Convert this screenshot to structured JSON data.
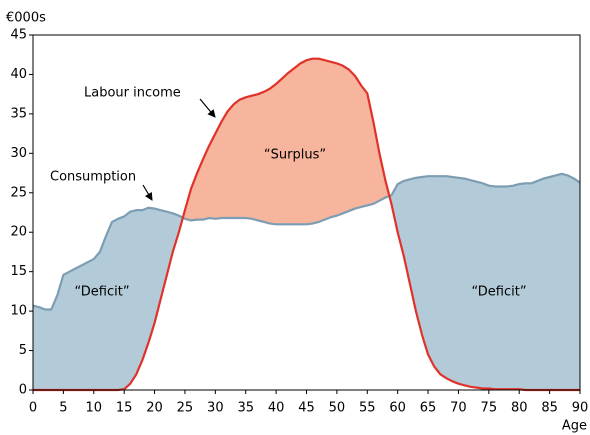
{
  "chart_data": {
    "type": "line",
    "y_unit_label": "€000s",
    "x_label": "Age",
    "x": [
      0,
      1,
      2,
      3,
      4,
      5,
      6,
      7,
      8,
      9,
      10,
      11,
      12,
      13,
      14,
      15,
      16,
      17,
      18,
      19,
      20,
      21,
      22,
      23,
      24,
      25,
      26,
      27,
      28,
      29,
      30,
      31,
      32,
      33,
      34,
      35,
      36,
      37,
      38,
      39,
      40,
      41,
      42,
      43,
      44,
      45,
      46,
      47,
      48,
      49,
      50,
      51,
      52,
      53,
      54,
      55,
      56,
      57,
      58,
      59,
      60,
      61,
      62,
      63,
      64,
      65,
      66,
      67,
      68,
      69,
      70,
      71,
      72,
      73,
      74,
      75,
      76,
      77,
      78,
      79,
      80,
      81,
      82,
      83,
      84,
      85,
      86,
      87,
      88,
      89,
      90
    ],
    "series": [
      {
        "name": "Consumption",
        "color": "#7d9db3",
        "values": [
          10.7,
          10.5,
          10.2,
          10.2,
          12,
          14.6,
          15,
          15.4,
          15.8,
          16.2,
          16.6,
          17.5,
          19.5,
          21.3,
          21.7,
          22,
          22.6,
          22.8,
          22.8,
          23.1,
          23,
          22.8,
          22.6,
          22.4,
          22.1,
          21.7,
          21.5,
          21.6,
          21.6,
          21.8,
          21.7,
          21.8,
          21.8,
          21.8,
          21.8,
          21.8,
          21.7,
          21.5,
          21.3,
          21.1,
          21,
          21,
          21,
          21,
          21,
          21,
          21.1,
          21.3,
          21.6,
          21.9,
          22.1,
          22.4,
          22.7,
          23,
          23.2,
          23.4,
          23.6,
          24,
          24.4,
          24.7,
          26.1,
          26.5,
          26.7,
          26.9,
          27,
          27.1,
          27.1,
          27.1,
          27.1,
          27,
          26.9,
          26.8,
          26.6,
          26.4,
          26.2,
          25.9,
          25.8,
          25.8,
          25.8,
          25.9,
          26.1,
          26.2,
          26.2,
          26.5,
          26.8,
          27,
          27.2,
          27.4,
          27.2,
          26.8,
          26.3
        ]
      },
      {
        "name": "Labour income",
        "color": "#e0322a",
        "values": [
          0,
          0,
          0,
          0,
          0,
          0,
          0,
          0,
          0,
          0,
          0,
          0,
          0,
          0,
          0,
          0.1,
          0.8,
          2,
          3.8,
          6,
          8.5,
          11.5,
          14.5,
          17.5,
          20,
          22.8,
          25.5,
          27.5,
          29.3,
          31,
          32.5,
          34,
          35.3,
          36.2,
          36.8,
          37.1,
          37.3,
          37.5,
          37.8,
          38.2,
          38.8,
          39.5,
          40.2,
          40.8,
          41.4,
          41.8,
          42,
          42,
          41.8,
          41.6,
          41.4,
          41.1,
          40.6,
          39.8,
          38.6,
          37.6,
          34,
          30,
          26.5,
          23.5,
          20,
          17,
          13.5,
          10,
          7,
          4.5,
          3,
          2,
          1.5,
          1.1,
          0.8,
          0.6,
          0.4,
          0.3,
          0.2,
          0.2,
          0.1,
          0.1,
          0.1,
          0.1,
          0.1,
          0,
          0,
          0,
          0,
          0,
          0,
          0,
          0,
          0,
          0
        ]
      }
    ],
    "deficit_color": "#b3cbd8",
    "surplus_color": "#f6b59c",
    "annotations": [
      "Labour income",
      "Consumption",
      "“Surplus”",
      "“Deficit”",
      "“Deficit”"
    ],
    "xlim": [
      0,
      90
    ],
    "xticks": [
      0,
      5,
      10,
      15,
      20,
      25,
      30,
      35,
      40,
      45,
      50,
      55,
      60,
      65,
      70,
      75,
      80,
      85,
      90
    ],
    "ylim": [
      0,
      45
    ],
    "yticks": [
      0,
      5,
      10,
      15,
      20,
      25,
      30,
      35,
      40,
      45
    ]
  }
}
